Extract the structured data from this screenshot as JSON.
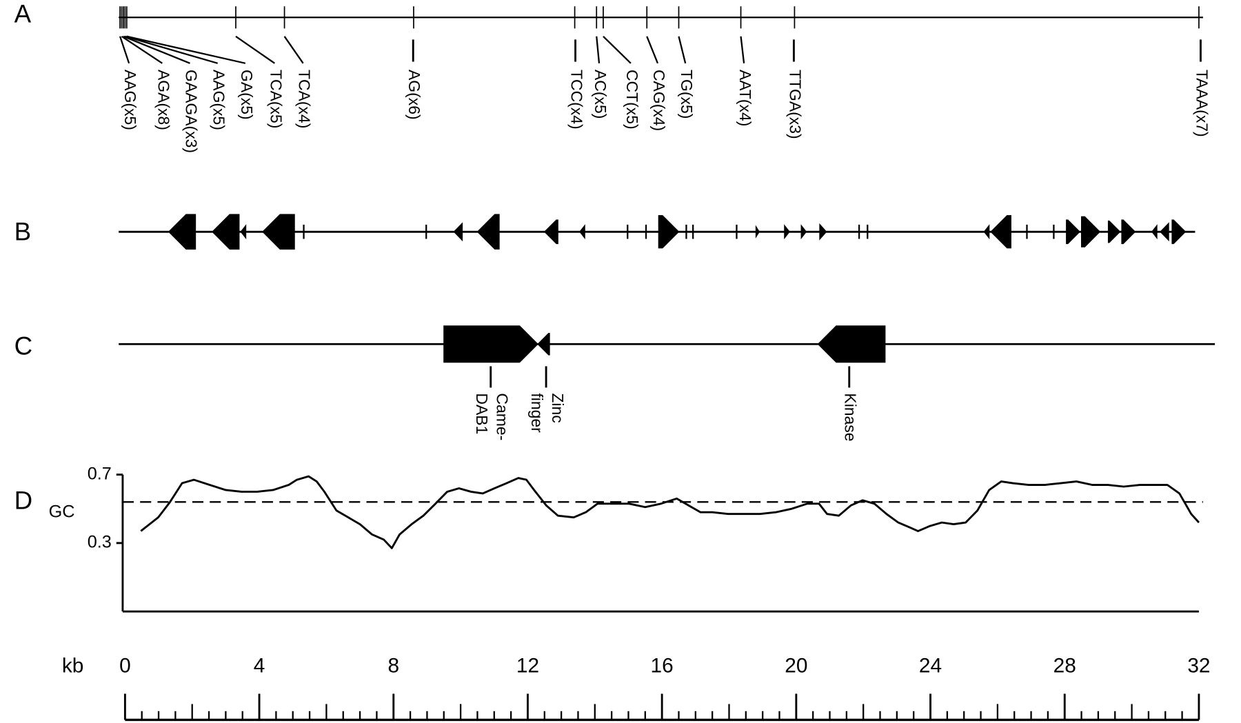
{
  "panel_labels": [
    "A",
    "B",
    "C",
    "D"
  ],
  "repeats": [
    {
      "label": "AAG(x5)",
      "position_kb": -0.15
    },
    {
      "label": "AGA(x8)",
      "position_kb": -0.1
    },
    {
      "label": "GAAGA(x3)",
      "position_kb": -0.05
    },
    {
      "label": "AAG(x5)",
      "position_kb": 0.0
    },
    {
      "label": "GA(x5)",
      "position_kb": 0.05
    },
    {
      "label": "TCA(x5)",
      "position_kb": 3.3
    },
    {
      "label": "TCA(x4)",
      "position_kb": 4.75
    },
    {
      "label": "AG(x6)",
      "position_kb": 8.6
    },
    {
      "label": "TCC(x4)",
      "position_kb": 13.4
    },
    {
      "label": "AC(x5)",
      "position_kb": 14.05
    },
    {
      "label": "CCT(x5)",
      "position_kb": 14.25
    },
    {
      "label": "CAG(x4)",
      "position_kb": 15.55
    },
    {
      "label": "TG(x5)",
      "position_kb": 16.5
    },
    {
      "label": "AAT(x4)",
      "position_kb": 18.35
    },
    {
      "label": "TTGA(x3)",
      "position_kb": 19.95
    },
    {
      "label": "TAAA(x7)",
      "position_kb": 32.0
    }
  ],
  "genes": [
    {
      "start_kb": 1.3,
      "end_kb": 2.1,
      "strand": "-"
    },
    {
      "start_kb": 2.6,
      "end_kb": 3.4,
      "strand": "-"
    },
    {
      "start_kb": 3.45,
      "end_kb": 3.6,
      "strand": "-"
    },
    {
      "start_kb": 4.1,
      "end_kb": 5.05,
      "strand": "-"
    },
    {
      "start_kb": 5.3,
      "end_kb": 5.35,
      "strand": "-"
    },
    {
      "start_kb": 8.95,
      "end_kb": 9.0,
      "strand": "-"
    },
    {
      "start_kb": 9.8,
      "end_kb": 10.05,
      "strand": "-"
    },
    {
      "start_kb": 10.5,
      "end_kb": 11.15,
      "strand": "-"
    },
    {
      "start_kb": 12.5,
      "end_kb": 12.9,
      "strand": "-"
    },
    {
      "start_kb": 13.55,
      "end_kb": 13.7,
      "strand": "-"
    },
    {
      "start_kb": 14.95,
      "end_kb": 15.0,
      "strand": "-"
    },
    {
      "start_kb": 15.5,
      "end_kb": 15.55,
      "strand": "-"
    },
    {
      "start_kb": 15.9,
      "end_kb": 16.5,
      "strand": "+"
    },
    {
      "start_kb": 16.7,
      "end_kb": 16.75,
      "strand": "+"
    },
    {
      "start_kb": 16.9,
      "end_kb": 16.95,
      "strand": "+"
    },
    {
      "start_kb": 18.2,
      "end_kb": 18.25,
      "strand": "+"
    },
    {
      "start_kb": 18.8,
      "end_kb": 18.9,
      "strand": "+"
    },
    {
      "start_kb": 19.65,
      "end_kb": 19.8,
      "strand": "+"
    },
    {
      "start_kb": 20.15,
      "end_kb": 20.3,
      "strand": "+"
    },
    {
      "start_kb": 20.7,
      "end_kb": 20.9,
      "strand": "+"
    },
    {
      "start_kb": 21.85,
      "end_kb": 21.9,
      "strand": "+"
    },
    {
      "start_kb": 22.1,
      "end_kb": 22.15,
      "strand": "+"
    },
    {
      "start_kb": 25.6,
      "end_kb": 25.75,
      "strand": "-"
    },
    {
      "start_kb": 25.8,
      "end_kb": 26.4,
      "strand": "-"
    },
    {
      "start_kb": 26.85,
      "end_kb": 26.9,
      "strand": "-"
    },
    {
      "start_kb": 27.65,
      "end_kb": 27.7,
      "strand": "-"
    },
    {
      "start_kb": 28.05,
      "end_kb": 28.45,
      "strand": "+"
    },
    {
      "start_kb": 28.5,
      "end_kb": 29.05,
      "strand": "+"
    },
    {
      "start_kb": 29.3,
      "end_kb": 29.65,
      "strand": "+"
    },
    {
      "start_kb": 29.7,
      "end_kb": 30.1,
      "strand": "+"
    },
    {
      "start_kb": 30.6,
      "end_kb": 30.75,
      "strand": "-"
    },
    {
      "start_kb": 30.85,
      "end_kb": 31.1,
      "strand": "-"
    },
    {
      "start_kb": 31.2,
      "end_kb": 31.6,
      "strand": "+"
    }
  ],
  "domains": [
    {
      "lines": [
        "Came-",
        "DAB1"
      ],
      "start_kb": 9.5,
      "end_kb": 12.3,
      "strand": "+"
    },
    {
      "lines": [
        "Zinc",
        "finger"
      ],
      "start_kb": 12.3,
      "end_kb": 12.65,
      "strand": "-"
    },
    {
      "lines": [
        "Kinase"
      ],
      "start_kb": 20.65,
      "end_kb": 22.65,
      "strand": "-"
    }
  ],
  "gc": {
    "axis_label": "GC",
    "ylim": [
      -0.1,
      0.7
    ],
    "yticks": [
      0.3,
      0.7
    ],
    "mean": 0.54,
    "x": [
      0.47,
      0.99,
      1.34,
      1.7,
      2.05,
      2.52,
      3.0,
      3.47,
      3.94,
      4.41,
      4.88,
      5.12,
      5.47,
      5.71,
      5.94,
      6.3,
      6.65,
      7.0,
      7.36,
      7.71,
      7.95,
      8.18,
      8.54,
      8.89,
      9.25,
      9.6,
      9.95,
      10.31,
      10.66,
      11.01,
      11.37,
      11.72,
      11.96,
      12.19,
      12.55,
      12.9,
      13.37,
      13.73,
      14.08,
      14.55,
      15.02,
      15.5,
      15.97,
      16.44,
      16.79,
      17.15,
      17.5,
      17.97,
      18.44,
      18.92,
      19.39,
      19.86,
      20.33,
      20.68,
      20.92,
      21.27,
      21.63,
      21.98,
      22.33,
      22.69,
      23.04,
      23.4,
      23.63,
      23.99,
      24.34,
      24.69,
      25.05,
      25.4,
      25.75,
      26.11,
      26.46,
      26.93,
      27.41,
      27.88,
      28.35,
      28.82,
      29.29,
      29.76,
      30.24,
      30.71,
      31.06,
      31.42,
      31.77,
      32.0
    ],
    "values": [
      0.37,
      0.45,
      0.54,
      0.65,
      0.67,
      0.64,
      0.61,
      0.6,
      0.6,
      0.61,
      0.64,
      0.67,
      0.69,
      0.66,
      0.6,
      0.49,
      0.45,
      0.41,
      0.35,
      0.32,
      0.27,
      0.35,
      0.41,
      0.46,
      0.53,
      0.6,
      0.62,
      0.6,
      0.59,
      0.62,
      0.65,
      0.68,
      0.67,
      0.61,
      0.52,
      0.46,
      0.45,
      0.48,
      0.53,
      0.53,
      0.53,
      0.51,
      0.53,
      0.56,
      0.52,
      0.48,
      0.48,
      0.47,
      0.47,
      0.47,
      0.48,
      0.5,
      0.53,
      0.53,
      0.47,
      0.46,
      0.52,
      0.55,
      0.53,
      0.47,
      0.42,
      0.39,
      0.37,
      0.4,
      0.42,
      0.41,
      0.42,
      0.49,
      0.61,
      0.66,
      0.65,
      0.64,
      0.64,
      0.65,
      0.66,
      0.64,
      0.64,
      0.63,
      0.64,
      0.64,
      0.64,
      0.59,
      0.47,
      0.42
    ]
  },
  "kb_axis": {
    "label": "kb",
    "xlim": [
      0,
      32
    ],
    "ticks": [
      0,
      4,
      8,
      12,
      16,
      20,
      24,
      28,
      32
    ],
    "minor_tick_step": 0.5
  }
}
